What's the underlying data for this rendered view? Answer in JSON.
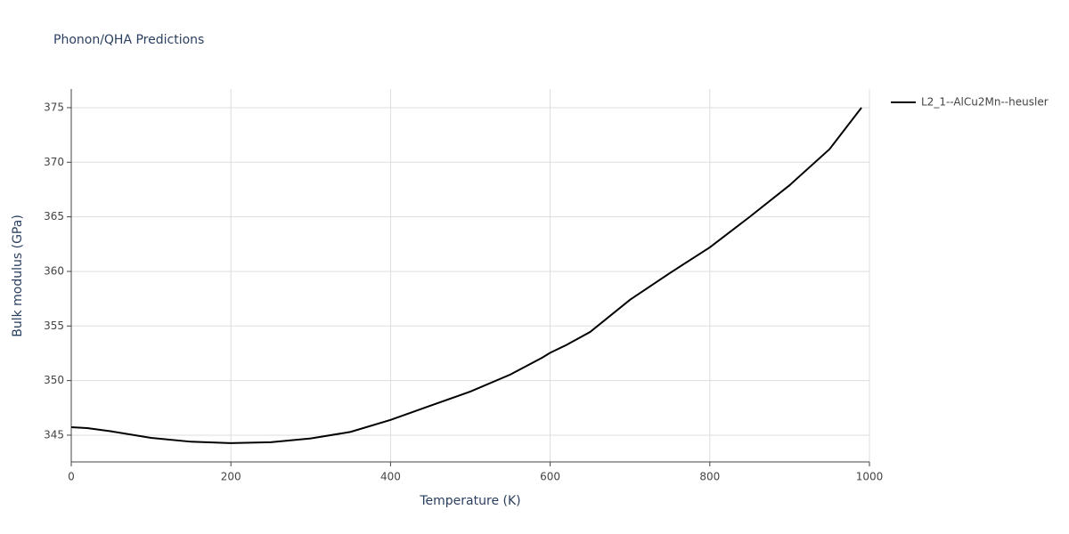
{
  "chart_data": {
    "type": "line",
    "title": "Phonon/QHA Predictions",
    "x_label": "Temperature (K)",
    "y_label": "Bulk modulus (GPa)",
    "x": [
      0,
      20,
      50,
      100,
      150,
      200,
      250,
      300,
      350,
      400,
      450,
      500,
      550,
      590,
      600,
      620,
      650,
      700,
      750,
      800,
      850,
      900,
      950,
      990
    ],
    "series": [
      {
        "name": "L2_1--AlCu2Mn--heusler",
        "color": "#000000",
        "values": [
          345.73,
          345.65,
          345.35,
          344.75,
          344.4,
          344.27,
          344.35,
          344.7,
          345.3,
          346.4,
          347.7,
          349.0,
          350.55,
          352.1,
          352.55,
          353.25,
          354.45,
          357.4,
          359.85,
          362.2,
          365.0,
          367.9,
          371.2,
          375.0
        ]
      }
    ],
    "xlim": [
      0,
      1000
    ],
    "xticks": [
      0,
      200,
      400,
      600,
      800,
      1000
    ],
    "ylim": [
      342.55,
      376.71
    ],
    "yticks": [
      345,
      350,
      355,
      360,
      365,
      370,
      375
    ],
    "grid": true,
    "legend": "top-right"
  }
}
